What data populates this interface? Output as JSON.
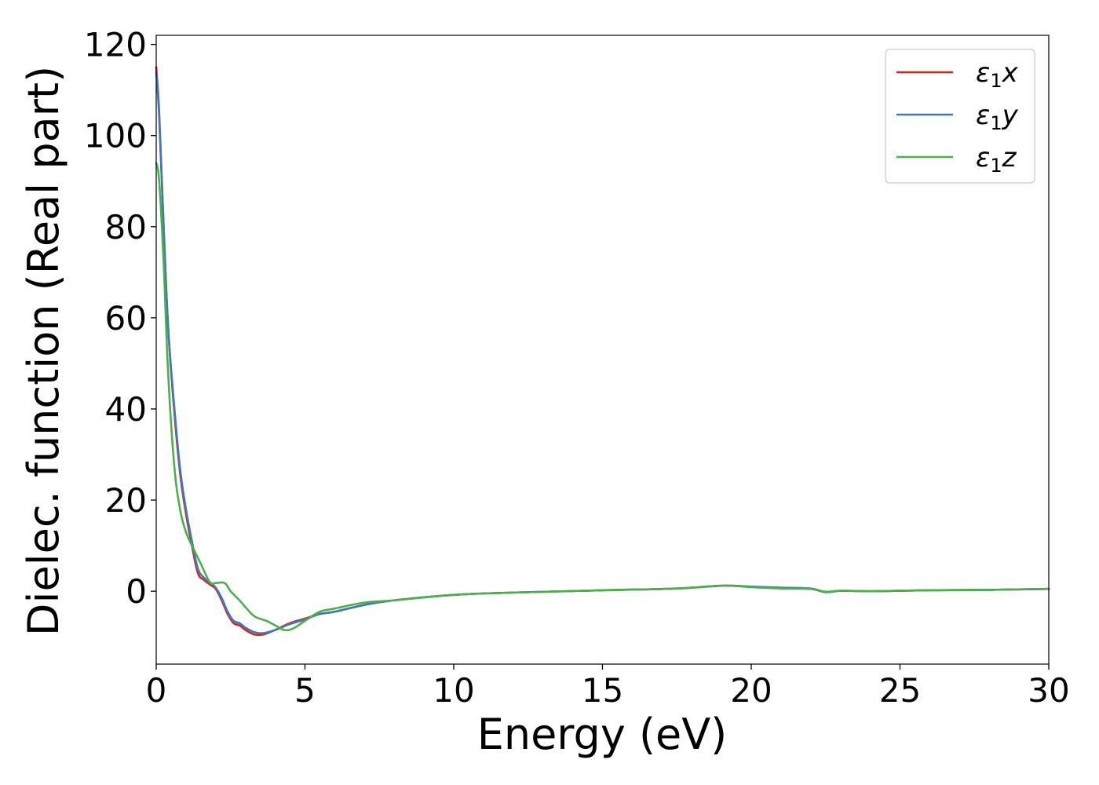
{
  "chart_data": {
    "type": "line",
    "title": "",
    "xlabel": "Energy (eV)",
    "ylabel": "Dielec. function (Real part)",
    "xlim": [
      0,
      30
    ],
    "ylim": [
      -16,
      122
    ],
    "xticks": [
      0,
      5,
      10,
      15,
      20,
      25,
      30
    ],
    "yticks": [
      0,
      20,
      40,
      60,
      80,
      100,
      120
    ],
    "xtick_labels": [
      "0",
      "5",
      "10",
      "15",
      "20",
      "25",
      "30"
    ],
    "ytick_labels": [
      "0",
      "20",
      "40",
      "60",
      "80",
      "100",
      "120"
    ],
    "grid": false,
    "legend": {
      "position": "top-right",
      "entries": [
        {
          "label": "ε1x",
          "color": "#d62728"
        },
        {
          "label": "ε1y",
          "color": "#3d7bb8"
        },
        {
          "label": "ε1z",
          "color": "#4daf4a"
        }
      ]
    },
    "series": [
      {
        "name": "ε1x",
        "color": "#d62728",
        "x": [
          0,
          0.1,
          0.25,
          0.4,
          0.6,
          0.8,
          1.0,
          1.2,
          1.4,
          1.6,
          1.8,
          2.0,
          2.2,
          2.4,
          2.6,
          2.8,
          3.0,
          3.3,
          3.6,
          4.0,
          4.5,
          5.0,
          5.5,
          6.0,
          7.0,
          8.0,
          10.0,
          12.0,
          15.0,
          17.5,
          19.0,
          20.0,
          21.0,
          22.0,
          22.5,
          23.0,
          24.0,
          25.0,
          26.0,
          28.0,
          30.0
        ],
        "values": [
          115,
          105,
          80,
          58,
          40,
          26,
          17,
          10,
          4,
          2.5,
          1.5,
          0.5,
          -2,
          -5,
          -7,
          -7.5,
          -8.5,
          -9.5,
          -9.5,
          -8.5,
          -7,
          -6,
          -5,
          -4.5,
          -3,
          -2,
          -0.8,
          -0.3,
          0.2,
          0.6,
          1.2,
          1.0,
          0.7,
          0.5,
          -0.2,
          0.1,
          0.0,
          0.1,
          0.2,
          0.3,
          0.5
        ]
      },
      {
        "name": "ε1y",
        "color": "#3d7bb8",
        "x": [
          0,
          0.1,
          0.25,
          0.4,
          0.6,
          0.8,
          1.0,
          1.2,
          1.4,
          1.6,
          1.8,
          2.0,
          2.2,
          2.4,
          2.6,
          2.8,
          3.0,
          3.3,
          3.6,
          4.0,
          4.5,
          5.0,
          5.5,
          6.0,
          7.0,
          8.0,
          10.0,
          12.0,
          15.0,
          17.5,
          19.0,
          20.0,
          21.0,
          22.0,
          22.5,
          23.0,
          24.0,
          25.0,
          26.0,
          28.0,
          30.0
        ],
        "values": [
          114,
          104,
          80,
          58,
          41,
          27,
          18,
          11,
          5,
          3,
          2,
          0.8,
          -1.5,
          -4.5,
          -6.5,
          -7,
          -8,
          -9,
          -9.2,
          -8.5,
          -7.2,
          -6.2,
          -5,
          -4.5,
          -3,
          -2,
          -0.8,
          -0.3,
          0.2,
          0.6,
          1.2,
          1.0,
          0.8,
          0.6,
          -0.2,
          0.1,
          0.0,
          0.1,
          0.2,
          0.3,
          0.5
        ]
      },
      {
        "name": "ε1z",
        "color": "#4daf4a",
        "x": [
          0,
          0.1,
          0.25,
          0.4,
          0.6,
          0.8,
          1.0,
          1.2,
          1.5,
          1.8,
          2.0,
          2.3,
          2.5,
          2.8,
          3.0,
          3.3,
          3.7,
          4.0,
          4.3,
          4.6,
          5.0,
          5.5,
          6.0,
          7.0,
          8.0,
          10.0,
          12.0,
          15.0,
          17.5,
          19.0,
          20.0,
          21.0,
          22.0,
          22.5,
          23.0,
          24.0,
          25.0,
          26.0,
          28.0,
          30.0
        ],
        "values": [
          94,
          90,
          72,
          48,
          28,
          18,
          13,
          10,
          6,
          2,
          1.8,
          1.8,
          0,
          -2,
          -3.5,
          -5.5,
          -6.5,
          -7.5,
          -8.5,
          -8.2,
          -6.5,
          -4.5,
          -3.8,
          -2.5,
          -2,
          -0.8,
          -0.3,
          0.2,
          0.6,
          1.2,
          0.9,
          0.6,
          0.5,
          -0.1,
          0.1,
          0.0,
          0.1,
          0.2,
          0.3,
          0.5
        ]
      }
    ]
  }
}
